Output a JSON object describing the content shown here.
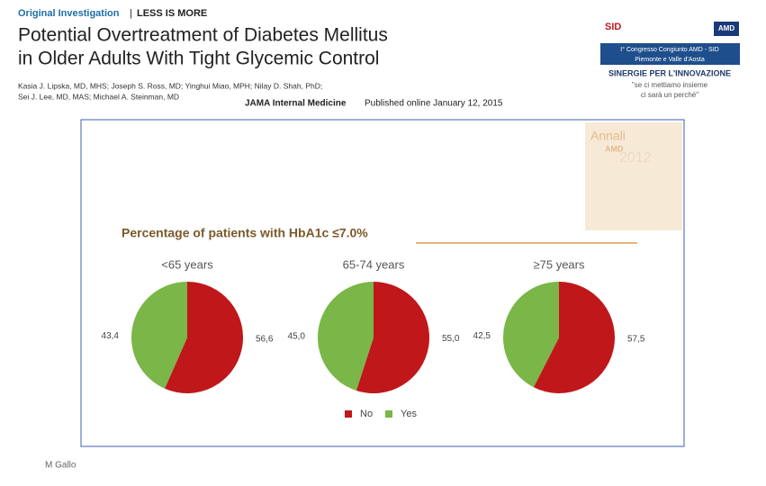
{
  "header": {
    "section": "Original Investigation",
    "series": "LESS IS MORE",
    "title_lines": [
      "Potential Overtreatment of Diabetes Mellitus",
      "in Older Adults With Tight Glycemic Control"
    ],
    "authors": [
      "Kasia J. Lipska, MD, MHS; Joseph S. Ross, MD; Yinghui Miao, MPH; Nilay D. Shah, PhD;",
      "Sei J. Lee, MD, MAS; Michael A. Steinman, MD"
    ],
    "journal": "JAMA Internal Medicine",
    "published": "Published online January 12, 2015"
  },
  "logos": {
    "sid": "SID",
    "amd": "AMD",
    "congress": "I° Congresso Congiunto AMD - SID",
    "region": "Piemonte e Valle d'Aosta",
    "motto": "SINERGIE PER L'INNOVAZIONE",
    "quote_lines": [
      "\"se ci mettiamo insieme",
      "ci sarà un perché\""
    ]
  },
  "book": {
    "title": "Annali",
    "brand": "AMD",
    "year": "2012"
  },
  "figure_title": "Percentage of patients with HbA1c ≤7.0%",
  "footer": "M Gallo",
  "chart_data": [
    {
      "type": "pie",
      "title": "<65 years",
      "categories": [
        "No",
        "Yes"
      ],
      "values": [
        56.6,
        43.4
      ],
      "value_labels": [
        "56,6",
        "43,4"
      ],
      "colors": [
        "#c0171b",
        "#7ab648"
      ]
    },
    {
      "type": "pie",
      "title": "65-74 years",
      "categories": [
        "No",
        "Yes"
      ],
      "values": [
        55.0,
        45.0
      ],
      "value_labels": [
        "55,0",
        "45,0"
      ],
      "colors": [
        "#c0171b",
        "#7ab648"
      ]
    },
    {
      "type": "pie",
      "title": "≥75 years",
      "categories": [
        "No",
        "Yes"
      ],
      "values": [
        57.5,
        42.5
      ],
      "value_labels": [
        "57,5",
        "42,5"
      ],
      "colors": [
        "#c0171b",
        "#7ab648"
      ]
    }
  ]
}
